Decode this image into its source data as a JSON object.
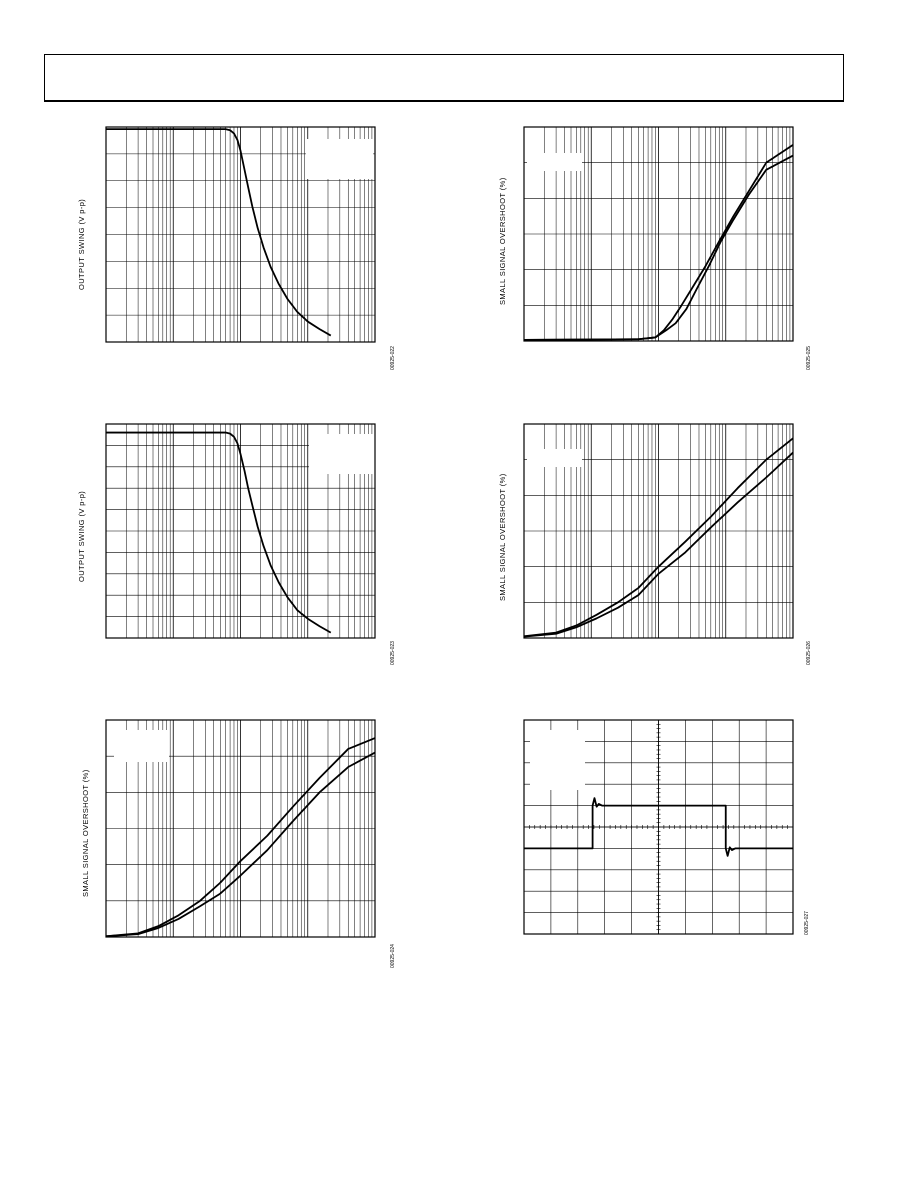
{
  "page": {
    "header_text": ""
  },
  "chart_data": [
    {
      "id": "fig-022",
      "type": "line",
      "ylabel": "OUTPUT SWING (V p-p)",
      "figure_id": "00925-022",
      "xscale": "log",
      "xlim": [
        1,
        10000
      ],
      "ylim": [
        0,
        10
      ],
      "grid": true,
      "series": [
        {
          "points": [
            [
              1,
              9.9
            ],
            [
              60,
              9.9
            ],
            [
              70,
              9.85
            ],
            [
              80,
              9.7
            ],
            [
              90,
              9.4
            ],
            [
              100,
              8.9
            ],
            [
              115,
              8.0
            ],
            [
              130,
              7.2
            ],
            [
              150,
              6.3
            ],
            [
              180,
              5.3
            ],
            [
              220,
              4.4
            ],
            [
              280,
              3.5
            ],
            [
              370,
              2.7
            ],
            [
              500,
              2.0
            ],
            [
              700,
              1.4
            ],
            [
              1000,
              0.95
            ],
            [
              1500,
              0.6
            ],
            [
              2200,
              0.3
            ]
          ]
        }
      ]
    },
    {
      "id": "fig-025",
      "type": "line",
      "ylabel": "SMALL SIGNAL OVERSHOOT (%)",
      "figure_id": "00925-025",
      "xscale": "log",
      "xlim": [
        1,
        10000
      ],
      "ylim": [
        0,
        6
      ],
      "grid": true,
      "series": [
        {
          "points": [
            [
              1,
              0.03
            ],
            [
              50,
              0.05
            ],
            [
              90,
              0.1
            ],
            [
              120,
              0.3
            ],
            [
              160,
              0.6
            ],
            [
              220,
              1.0
            ],
            [
              320,
              1.5
            ],
            [
              500,
              2.1
            ],
            [
              800,
              2.8
            ],
            [
              1300,
              3.5
            ],
            [
              2200,
              4.2
            ],
            [
              4000,
              5.0
            ],
            [
              10000,
              5.5
            ]
          ]
        },
        {
          "points": [
            [
              1,
              0.03
            ],
            [
              50,
              0.05
            ],
            [
              90,
              0.1
            ],
            [
              130,
              0.3
            ],
            [
              180,
              0.5
            ],
            [
              260,
              0.9
            ],
            [
              380,
              1.5
            ],
            [
              560,
              2.1
            ],
            [
              850,
              2.8
            ],
            [
              1300,
              3.4
            ],
            [
              2200,
              4.1
            ],
            [
              4000,
              4.8
            ],
            [
              10000,
              5.2
            ]
          ]
        }
      ]
    },
    {
      "id": "fig-023",
      "type": "line",
      "ylabel": "OUTPUT SWING (V p-p)",
      "figure_id": "00925-023",
      "xscale": "log",
      "xlim": [
        1,
        10000
      ],
      "ylim": [
        0,
        10
      ],
      "grid": true,
      "series": [
        {
          "points": [
            [
              1,
              9.6
            ],
            [
              60,
              9.6
            ],
            [
              70,
              9.55
            ],
            [
              80,
              9.4
            ],
            [
              90,
              9.1
            ],
            [
              100,
              8.6
            ],
            [
              115,
              7.8
            ],
            [
              130,
              7.0
            ],
            [
              150,
              6.2
            ],
            [
              180,
              5.2
            ],
            [
              220,
              4.3
            ],
            [
              280,
              3.4
            ],
            [
              370,
              2.6
            ],
            [
              500,
              1.9
            ],
            [
              700,
              1.3
            ],
            [
              1000,
              0.9
            ],
            [
              1500,
              0.55
            ],
            [
              2200,
              0.25
            ]
          ]
        }
      ]
    },
    {
      "id": "fig-026",
      "type": "line",
      "ylabel": "SMALL SIGNAL OVERSHOOT (%)",
      "figure_id": "00925-026",
      "xscale": "log",
      "xlim": [
        1,
        10000
      ],
      "ylim": [
        0,
        6
      ],
      "grid": true,
      "series": [
        {
          "points": [
            [
              1,
              0.05
            ],
            [
              3,
              0.15
            ],
            [
              6,
              0.35
            ],
            [
              12,
              0.65
            ],
            [
              25,
              1.0
            ],
            [
              50,
              1.4
            ],
            [
              100,
              2.0
            ],
            [
              250,
              2.7
            ],
            [
              600,
              3.4
            ],
            [
              1500,
              4.2
            ],
            [
              4000,
              5.0
            ],
            [
              10000,
              5.6
            ]
          ]
        },
        {
          "points": [
            [
              1,
              0.04
            ],
            [
              3,
              0.12
            ],
            [
              6,
              0.3
            ],
            [
              12,
              0.55
            ],
            [
              25,
              0.85
            ],
            [
              50,
              1.2
            ],
            [
              100,
              1.8
            ],
            [
              250,
              2.4
            ],
            [
              600,
              3.1
            ],
            [
              1500,
              3.8
            ],
            [
              4000,
              4.5
            ],
            [
              10000,
              5.2
            ]
          ]
        }
      ]
    },
    {
      "id": "fig-024",
      "type": "line",
      "ylabel": "SMALL SIGNAL OVERSHOOT (%)",
      "figure_id": "00925-024",
      "xscale": "log",
      "xlim": [
        1,
        10000
      ],
      "ylim": [
        0,
        6
      ],
      "grid": true,
      "series": [
        {
          "points": [
            [
              1,
              0.02
            ],
            [
              3,
              0.1
            ],
            [
              6,
              0.3
            ],
            [
              12,
              0.6
            ],
            [
              25,
              1.0
            ],
            [
              50,
              1.5
            ],
            [
              100,
              2.1
            ],
            [
              250,
              2.8
            ],
            [
              600,
              3.6
            ],
            [
              1500,
              4.4
            ],
            [
              4000,
              5.2
            ],
            [
              10000,
              5.5
            ]
          ]
        },
        {
          "points": [
            [
              1,
              0.02
            ],
            [
              3,
              0.08
            ],
            [
              6,
              0.25
            ],
            [
              12,
              0.5
            ],
            [
              25,
              0.85
            ],
            [
              50,
              1.2
            ],
            [
              100,
              1.7
            ],
            [
              250,
              2.4
            ],
            [
              600,
              3.2
            ],
            [
              1500,
              4.0
            ],
            [
              4000,
              4.7
            ],
            [
              10000,
              5.1
            ]
          ]
        }
      ]
    },
    {
      "id": "fig-027",
      "type": "line",
      "ylabel": "",
      "figure_id": "00925-027",
      "xscale": "linear",
      "xlim": [
        0,
        10
      ],
      "ylim": [
        -5,
        5
      ],
      "grid": true,
      "series": [
        {
          "points": [
            [
              0,
              -1
            ],
            [
              2.55,
              -1
            ],
            [
              2.55,
              1
            ],
            [
              2.62,
              1.35
            ],
            [
              2.7,
              0.95
            ],
            [
              2.78,
              1.08
            ],
            [
              2.9,
              1
            ],
            [
              7.5,
              1
            ],
            [
              7.5,
              -1
            ],
            [
              7.57,
              -1.35
            ],
            [
              7.65,
              -0.95
            ],
            [
              7.73,
              -1.08
            ],
            [
              7.85,
              -1
            ],
            [
              10,
              -1
            ]
          ]
        }
      ]
    }
  ]
}
